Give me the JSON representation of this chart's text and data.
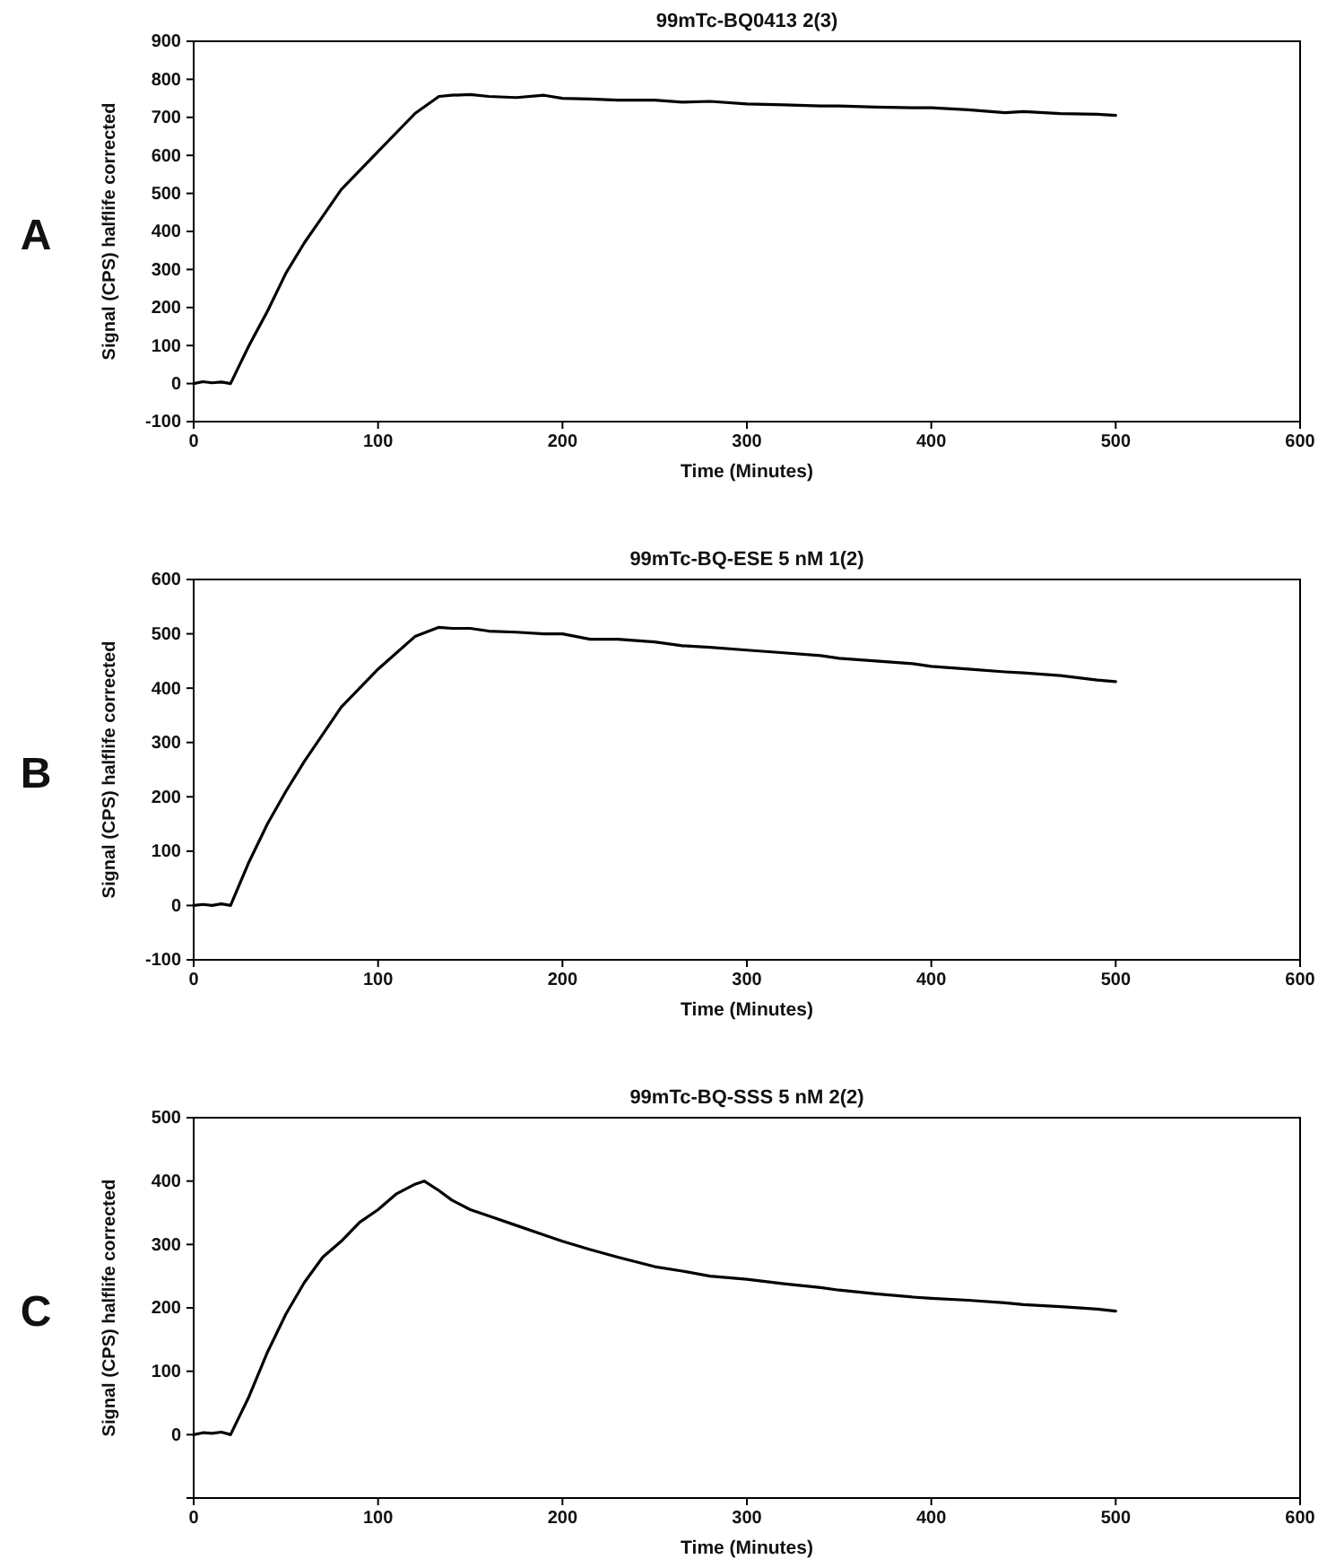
{
  "chart_data": [
    {
      "type": "line",
      "title": "99mTc-BQ0413 2(3)",
      "xlabel": "Time (Minutes)",
      "ylabel": "Signal (CPS) halflife corrected",
      "annotations": [
        "A"
      ],
      "color": "#000000",
      "xlim": [
        0,
        600
      ],
      "xticks": [
        0,
        100,
        200,
        300,
        400,
        500,
        600
      ],
      "ylim": [
        -100,
        900
      ],
      "yticks": [
        -100,
        0,
        100,
        200,
        300,
        400,
        500,
        600,
        700,
        800,
        900
      ],
      "x": [
        0,
        5,
        10,
        15,
        20,
        25,
        30,
        35,
        40,
        50,
        60,
        70,
        80,
        90,
        100,
        110,
        120,
        133,
        140,
        150,
        160,
        175,
        190,
        200,
        215,
        230,
        250,
        265,
        280,
        300,
        320,
        340,
        350,
        370,
        390,
        400,
        420,
        440,
        450,
        470,
        490,
        500
      ],
      "values": [
        0,
        5,
        2,
        4,
        0,
        50,
        100,
        145,
        190,
        290,
        370,
        440,
        510,
        560,
        610,
        660,
        710,
        755,
        758,
        760,
        755,
        752,
        758,
        750,
        748,
        745,
        745,
        740,
        742,
        735,
        733,
        730,
        730,
        727,
        725,
        725,
        720,
        712,
        715,
        710,
        708,
        705
      ]
    },
    {
      "type": "line",
      "title": "99mTc-BQ-ESE 5 nM 1(2)",
      "xlabel": "Time (Minutes)",
      "ylabel": "Signal (CPS) halflife corrected",
      "annotations": [
        "B"
      ],
      "color": "#000000",
      "xlim": [
        0,
        600
      ],
      "xticks": [
        0,
        100,
        200,
        300,
        400,
        500,
        600
      ],
      "ylim": [
        -100,
        600
      ],
      "yticks": [
        -100,
        0,
        100,
        200,
        300,
        400,
        500,
        600
      ],
      "x": [
        0,
        5,
        10,
        15,
        20,
        25,
        30,
        35,
        40,
        50,
        60,
        70,
        80,
        90,
        100,
        110,
        120,
        133,
        140,
        150,
        160,
        175,
        190,
        200,
        215,
        230,
        250,
        265,
        280,
        300,
        320,
        340,
        350,
        370,
        390,
        400,
        420,
        440,
        450,
        470,
        490,
        500
      ],
      "values": [
        0,
        2,
        0,
        3,
        0,
        40,
        80,
        115,
        150,
        210,
        265,
        315,
        365,
        400,
        435,
        465,
        495,
        512,
        510,
        510,
        505,
        503,
        500,
        500,
        490,
        490,
        485,
        478,
        475,
        470,
        465,
        460,
        455,
        450,
        445,
        440,
        435,
        430,
        428,
        423,
        415,
        412
      ]
    },
    {
      "type": "line",
      "title": "99mTc-BQ-SSS 5 nM 2(2)",
      "xlabel": "Time (Minutes)",
      "ylabel": "Signal (CPS) halflife corrected",
      "annotations": [
        "C"
      ],
      "color": "#000000",
      "xlim": [
        0,
        600
      ],
      "xticks": [
        0,
        100,
        200,
        300,
        400,
        500,
        600
      ],
      "ylim": [
        -100,
        500
      ],
      "yticks": [
        {
          "value": -100,
          "label": null
        },
        0,
        100,
        200,
        300,
        400,
        500
      ],
      "x": [
        0,
        5,
        10,
        15,
        20,
        25,
        30,
        35,
        40,
        50,
        60,
        70,
        80,
        90,
        100,
        110,
        120,
        125,
        133,
        140,
        150,
        160,
        175,
        190,
        200,
        215,
        230,
        250,
        265,
        280,
        300,
        320,
        340,
        350,
        370,
        390,
        400,
        420,
        440,
        450,
        470,
        490,
        500
      ],
      "values": [
        0,
        3,
        2,
        4,
        0,
        30,
        60,
        95,
        130,
        190,
        240,
        280,
        305,
        335,
        355,
        380,
        395,
        400,
        385,
        370,
        355,
        345,
        330,
        315,
        305,
        292,
        280,
        265,
        258,
        250,
        245,
        238,
        232,
        228,
        222,
        217,
        215,
        212,
        208,
        205,
        202,
        198,
        195
      ]
    }
  ]
}
